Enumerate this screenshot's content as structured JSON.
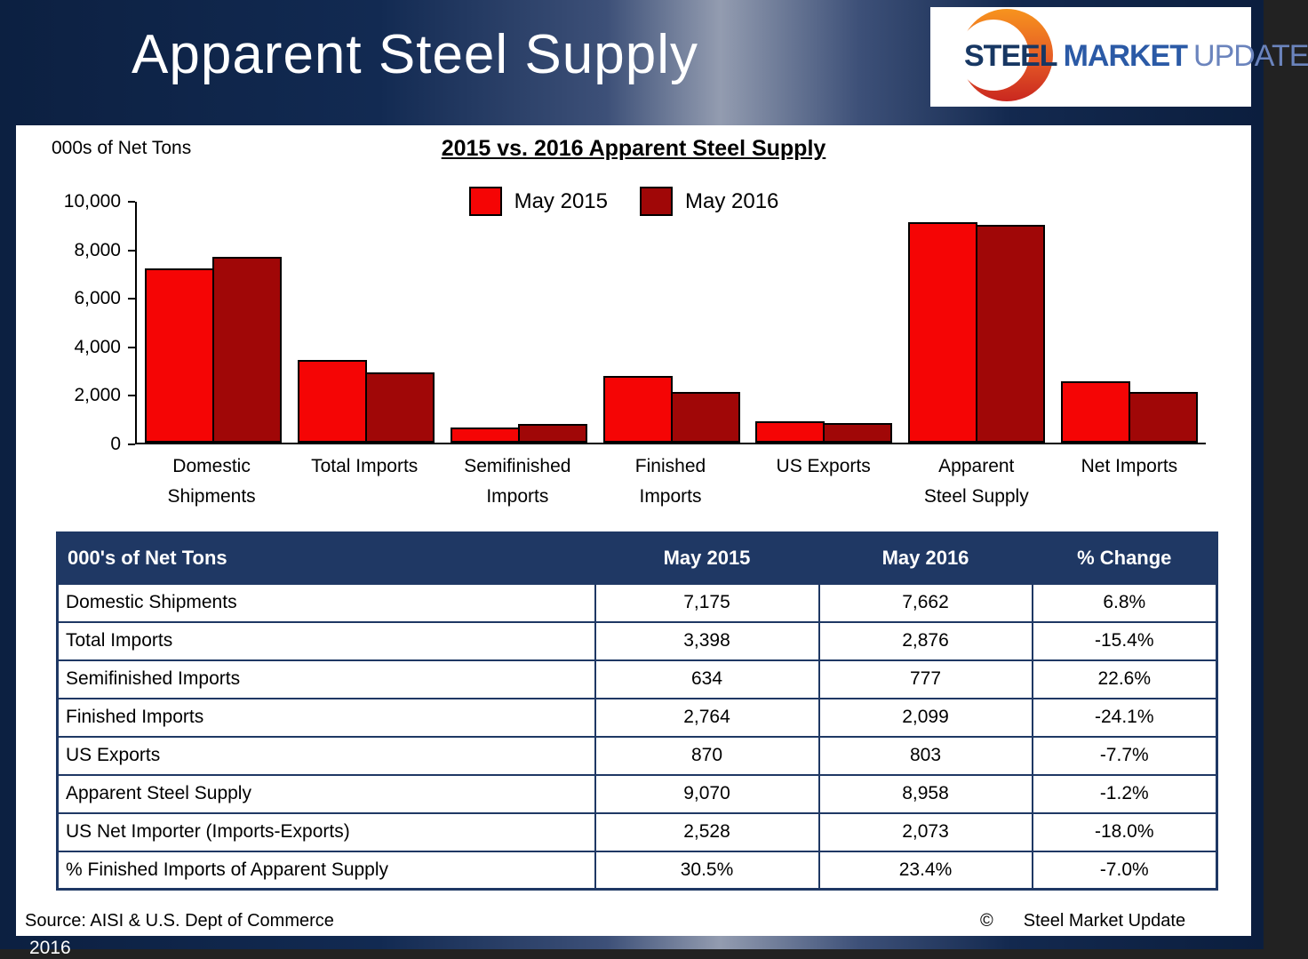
{
  "header": {
    "title": "Apparent Steel Supply",
    "logo": {
      "word1": "STEEL",
      "word2": "MARKET",
      "word3": "UPDATE"
    }
  },
  "chart": {
    "units_label": "000s of Net Tons",
    "title": "2015 vs. 2016 Apparent Steel Supply"
  },
  "chart_data": {
    "type": "bar",
    "title": "2015 vs. 2016 Apparent Steel Supply",
    "ylabel": "000s of Net Tons",
    "ylim": [
      0,
      10000
    ],
    "ytick_values": [
      0,
      2000,
      4000,
      6000,
      8000,
      10000
    ],
    "ytick_labels": [
      "0",
      "2,000",
      "4,000",
      "6,000",
      "8,000",
      "10,000"
    ],
    "grid": false,
    "legend_position": "top-center",
    "categories": [
      "Domestic Shipments",
      "Total Imports",
      "Semifinished Imports",
      "Finished Imports",
      "US Exports",
      "Apparent Steel Supply",
      "Net Imports"
    ],
    "category_label_lines": [
      [
        "Domestic",
        "Shipments"
      ],
      [
        "Total Imports"
      ],
      [
        "Semifinished",
        "Imports"
      ],
      [
        "Finished",
        "Imports"
      ],
      [
        "US Exports"
      ],
      [
        "Apparent",
        "Steel Supply"
      ],
      [
        "Net Imports"
      ]
    ],
    "series": [
      {
        "name": "May 2015",
        "color": "#f50505",
        "values": [
          7175,
          3398,
          634,
          2764,
          870,
          9070,
          2528
        ]
      },
      {
        "name": "May 2016",
        "color": "#a00707",
        "values": [
          7662,
          2876,
          777,
          2099,
          803,
          8958,
          2073
        ]
      }
    ]
  },
  "table": {
    "title_cell": "000's of Net Tons",
    "columns": [
      "May 2015",
      "May 2016",
      "% Change"
    ],
    "rows": [
      {
        "label": "Domestic Shipments",
        "may2015": "7,175",
        "may2016": "7,662",
        "change": "6.8%"
      },
      {
        "label": "Total Imports",
        "may2015": "3,398",
        "may2016": "2,876",
        "change": "-15.4%"
      },
      {
        "label": "Semifinished Imports",
        "may2015": "634",
        "may2016": "777",
        "change": "22.6%"
      },
      {
        "label": "Finished Imports",
        "may2015": "2,764",
        "may2016": "2,099",
        "change": "-24.1%"
      },
      {
        "label": "US Exports",
        "may2015": "870",
        "may2016": "803",
        "change": "-7.7%"
      },
      {
        "label": "Apparent Steel Supply",
        "may2015": "9,070",
        "may2016": "8,958",
        "change": "-1.2%"
      },
      {
        "label": "US Net Importer (Imports-Exports)",
        "may2015": "2,528",
        "may2016": "2,073",
        "change": "-18.0%"
      },
      {
        "label": "% Finished Imports of Apparent Supply",
        "may2015": "30.5%",
        "may2016": "23.4%",
        "change": "-7.0%"
      }
    ]
  },
  "footer": {
    "source": "Source:  AISI & U.S. Dept of Commerce",
    "copyright_symbol": "©",
    "copyright_text": "Steel Market Update",
    "clipped_year": "2016"
  },
  "colors": {
    "slide_navy": "#0c2041",
    "table_navy": "#1f3864",
    "bar_red_2015": "#f50505",
    "bar_red_2016": "#a00707",
    "bar_border": "#000000",
    "logo_orange_top": "#f7941e",
    "logo_orange_bottom": "#c9271f"
  }
}
